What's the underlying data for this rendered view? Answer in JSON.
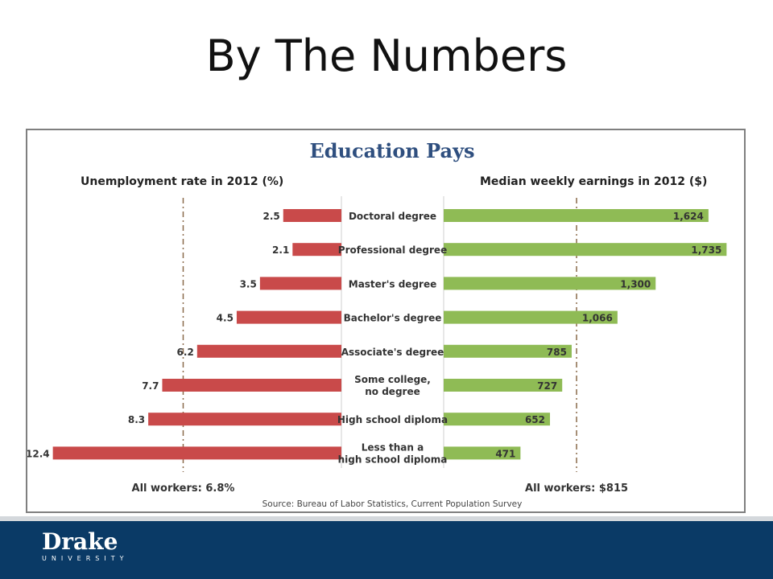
{
  "slide": {
    "title": "By The Numbers"
  },
  "footer": {
    "logo_text": "Drake",
    "logo_subtext": "UNIVERSITY"
  },
  "chart_data": {
    "type": "bar",
    "title": "Education Pays",
    "source": "Source: Bureau of Labor Statistics, Current Population Survey",
    "categories": [
      [
        "Doctoral degree"
      ],
      [
        "Professional degree"
      ],
      [
        "Master's degree"
      ],
      [
        "Bachelor's degree"
      ],
      [
        "Associate's degree"
      ],
      [
        "Some college,",
        "no degree"
      ],
      [
        "High school diploma"
      ],
      [
        "Less than a",
        "high school diploma"
      ]
    ],
    "series": [
      {
        "name": "Unemployment rate in 2012 (%)",
        "values": [
          2.5,
          2.1,
          3.5,
          4.5,
          6.2,
          7.7,
          8.3,
          12.4
        ],
        "labels": [
          "2.5",
          "2.1",
          "3.5",
          "4.5",
          "6.2",
          "7.7",
          "8.3",
          "12.4"
        ],
        "color": "#c94a4a",
        "reference_label": "All workers: 6.8%",
        "reference_value": 6.8
      },
      {
        "name": "Median weekly earnings in 2012 ($)",
        "values": [
          1624,
          1735,
          1300,
          1066,
          785,
          727,
          652,
          471
        ],
        "labels": [
          "1,624",
          "1,735",
          "1,300",
          "1,066",
          "785",
          "727",
          "652",
          "471"
        ],
        "color": "#8fbb55",
        "reference_label": "All workers: $815",
        "reference_value": 815
      }
    ],
    "colors": {
      "title": "#2f4f7f",
      "reference_line": "#8a6a4a"
    }
  }
}
